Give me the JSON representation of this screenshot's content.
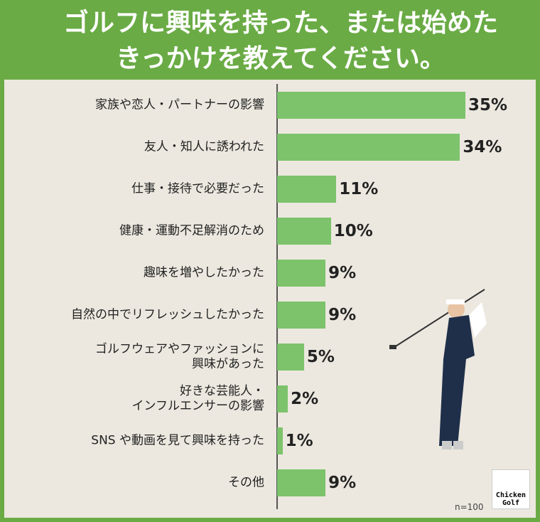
{
  "chart_data": {
    "type": "bar",
    "orientation": "horizontal",
    "title": "ゴルフに興味を持った、または始めた\nきっかけを教えてください。",
    "categories": [
      "家族や恋人・パートナーの影響",
      "友人・知人に誘われた",
      "仕事・接待で必要だった",
      "健康・運動不足解消のため",
      "趣味を増やしたかった",
      "自然の中でリフレッシュしたかった",
      "ゴルフウェアやファッションに\n興味があった",
      "好きな芸能人・\nインフルエンサーの影響",
      "SNS や動画を見て興味を持った",
      "その他"
    ],
    "values": [
      35,
      34,
      11,
      10,
      9,
      9,
      5,
      2,
      1,
      9
    ],
    "value_labels": [
      "35%",
      "34%",
      "11%",
      "10%",
      "9%",
      "9%",
      "5%",
      "2%",
      "1%",
      "9%"
    ],
    "color": "#7cc36b",
    "note": "n=100",
    "logo_text": "Chicken\nGolf"
  }
}
